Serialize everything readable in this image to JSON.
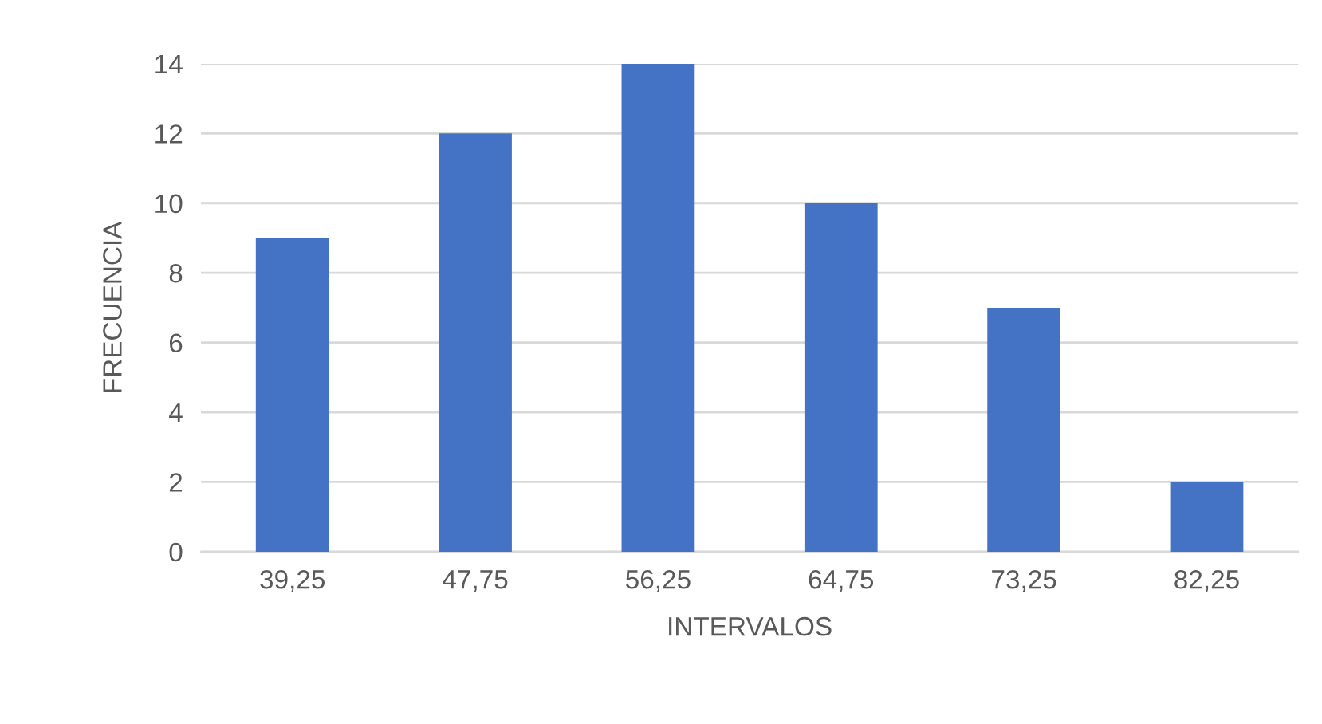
{
  "chart_data": {
    "type": "bar",
    "xlabel": "INTERVALOS",
    "ylabel": "FRECUENCIA",
    "categories": [
      "39,25",
      "47,75",
      "56,25",
      "64,75",
      "73,25",
      "82,25"
    ],
    "values": [
      9,
      12,
      14,
      10,
      7,
      2
    ],
    "color": "#4472c4",
    "ylim": [
      0,
      14
    ],
    "yticks": [
      0,
      2,
      4,
      6,
      8,
      10,
      12,
      14
    ],
    "grid": "y"
  }
}
